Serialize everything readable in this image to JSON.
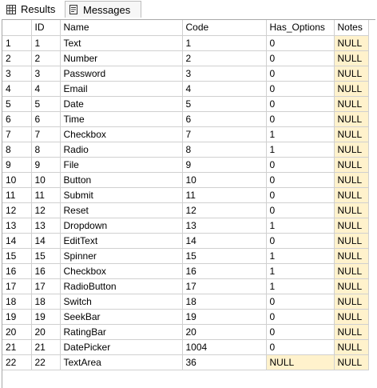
{
  "tabs": {
    "results_label": "Results",
    "messages_label": "Messages",
    "results_icon": "grid-icon",
    "messages_icon": "messages-icon"
  },
  "grid": {
    "columns": [
      "ID",
      "Name",
      "Code",
      "Has_Options",
      "Notes"
    ],
    "rows": [
      {
        "n": "1",
        "id": "1",
        "name": "Text",
        "code": "1",
        "has_options": "0",
        "notes": "NULL"
      },
      {
        "n": "2",
        "id": "2",
        "name": "Number",
        "code": "2",
        "has_options": "0",
        "notes": "NULL"
      },
      {
        "n": "3",
        "id": "3",
        "name": "Password",
        "code": "3",
        "has_options": "0",
        "notes": "NULL"
      },
      {
        "n": "4",
        "id": "4",
        "name": "Email",
        "code": "4",
        "has_options": "0",
        "notes": "NULL"
      },
      {
        "n": "5",
        "id": "5",
        "name": "Date",
        "code": "5",
        "has_options": "0",
        "notes": "NULL"
      },
      {
        "n": "6",
        "id": "6",
        "name": "Time",
        "code": "6",
        "has_options": "0",
        "notes": "NULL"
      },
      {
        "n": "7",
        "id": "7",
        "name": "Checkbox",
        "code": "7",
        "has_options": "1",
        "notes": "NULL"
      },
      {
        "n": "8",
        "id": "8",
        "name": "Radio",
        "code": "8",
        "has_options": "1",
        "notes": "NULL"
      },
      {
        "n": "9",
        "id": "9",
        "name": "File",
        "code": "9",
        "has_options": "0",
        "notes": "NULL"
      },
      {
        "n": "10",
        "id": "10",
        "name": "Button",
        "code": "10",
        "has_options": "0",
        "notes": "NULL"
      },
      {
        "n": "11",
        "id": "11",
        "name": "Submit",
        "code": "11",
        "has_options": "0",
        "notes": "NULL"
      },
      {
        "n": "12",
        "id": "12",
        "name": "Reset",
        "code": "12",
        "has_options": "0",
        "notes": "NULL"
      },
      {
        "n": "13",
        "id": "13",
        "name": "Dropdown",
        "code": "13",
        "has_options": "1",
        "notes": "NULL"
      },
      {
        "n": "14",
        "id": "14",
        "name": "EditText",
        "code": "14",
        "has_options": "0",
        "notes": "NULL"
      },
      {
        "n": "15",
        "id": "15",
        "name": "Spinner",
        "code": "15",
        "has_options": "1",
        "notes": "NULL"
      },
      {
        "n": "16",
        "id": "16",
        "name": "Checkbox",
        "code": "16",
        "has_options": "1",
        "notes": "NULL"
      },
      {
        "n": "17",
        "id": "17",
        "name": "RadioButton",
        "code": "17",
        "has_options": "1",
        "notes": "NULL"
      },
      {
        "n": "18",
        "id": "18",
        "name": "Switch",
        "code": "18",
        "has_options": "0",
        "notes": "NULL"
      },
      {
        "n": "19",
        "id": "19",
        "name": "SeekBar",
        "code": "19",
        "has_options": "0",
        "notes": "NULL"
      },
      {
        "n": "20",
        "id": "20",
        "name": "RatingBar",
        "code": "20",
        "has_options": "0",
        "notes": "NULL"
      },
      {
        "n": "21",
        "id": "21",
        "name": "DatePicker",
        "code": "1004",
        "has_options": "0",
        "notes": "NULL"
      },
      {
        "n": "22",
        "id": "22",
        "name": "TextArea",
        "code": "36",
        "has_options": "NULL",
        "notes": "NULL"
      }
    ]
  },
  "colors": {
    "null_cell": "#fff2cc",
    "grid_line": "#d0d0d0"
  }
}
